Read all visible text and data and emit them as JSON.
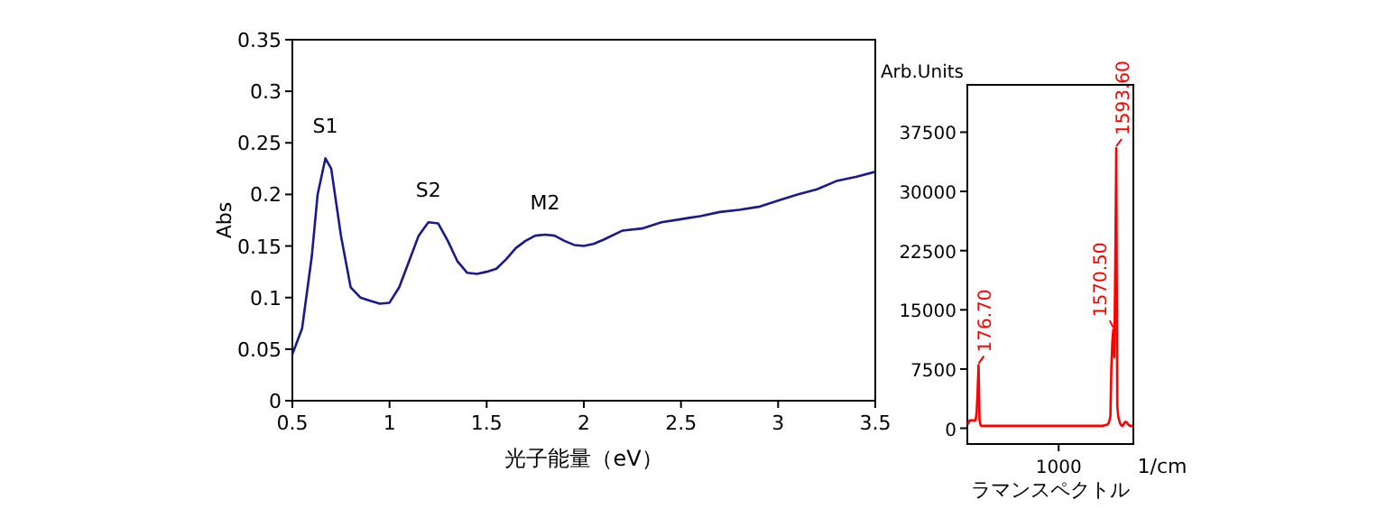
{
  "chart_data": [
    {
      "type": "line",
      "xlabel": "光子能量（eV）",
      "ylabel": "Abs",
      "x": [
        0.5,
        0.55,
        0.6,
        0.63,
        0.67,
        0.7,
        0.75,
        0.8,
        0.85,
        0.9,
        0.95,
        1.0,
        1.05,
        1.1,
        1.15,
        1.2,
        1.25,
        1.3,
        1.35,
        1.4,
        1.45,
        1.5,
        1.55,
        1.6,
        1.65,
        1.7,
        1.75,
        1.8,
        1.85,
        1.9,
        1.95,
        2.0,
        2.05,
        2.1,
        2.2,
        2.3,
        2.4,
        2.5,
        2.6,
        2.7,
        2.8,
        2.9,
        3.0,
        3.1,
        3.2,
        3.3,
        3.4,
        3.5
      ],
      "series": [
        {
          "color": "#1a1a8c",
          "values": [
            0.045,
            0.07,
            0.14,
            0.2,
            0.235,
            0.225,
            0.16,
            0.11,
            0.1,
            0.097,
            0.094,
            0.095,
            0.11,
            0.135,
            0.16,
            0.173,
            0.172,
            0.155,
            0.135,
            0.124,
            0.123,
            0.125,
            0.128,
            0.137,
            0.148,
            0.155,
            0.16,
            0.161,
            0.16,
            0.155,
            0.151,
            0.15,
            0.152,
            0.156,
            0.165,
            0.167,
            0.173,
            0.176,
            0.179,
            0.183,
            0.185,
            0.188,
            0.194,
            0.2,
            0.205,
            0.213,
            0.217,
            0.222
          ]
        }
      ],
      "xlim": [
        0.5,
        3.5
      ],
      "xticks": [
        0.5,
        1,
        1.5,
        2,
        2.5,
        3,
        3.5
      ],
      "ylim": [
        0,
        0.35
      ],
      "yticks": [
        0,
        0.05,
        0.1,
        0.15,
        0.2,
        0.25,
        0.3,
        0.35
      ],
      "annotations": [
        {
          "text": "S1",
          "x": 0.67,
          "y": 0.235
        },
        {
          "text": "S2",
          "x": 1.2,
          "y": 0.173
        },
        {
          "text": "M2",
          "x": 1.8,
          "y": 0.161
        }
      ]
    },
    {
      "type": "line",
      "xlabel": "ラマンスペクトル",
      "ylabel": "Arb.Units",
      "categories": [
        null,
        null,
        null,
        null,
        null,
        null,
        null,
        null,
        null,
        null,
        null,
        null,
        null,
        null,
        null,
        null,
        null,
        null,
        null,
        null,
        null,
        null,
        null,
        null,
        null,
        null,
        null,
        null,
        null,
        null,
        null,
        null,
        null,
        null,
        null,
        null,
        null,
        null,
        null,
        null,
        null,
        null,
        null,
        null,
        null,
        null,
        null,
        null,
        null,
        null,
        null,
        null,
        null,
        null,
        null,
        null,
        null,
        null,
        null,
        null,
        null,
        null,
        null,
        null,
        null,
        null,
        null,
        null,
        null,
        null,
        null,
        null,
        null,
        null,
        null,
        null,
        null,
        null,
        null,
        null,
        null,
        null,
        null,
        null,
        null,
        null,
        null,
        null,
        null,
        null,
        null,
        null,
        null,
        "1000",
        null,
        null,
        null,
        null,
        null,
        null,
        null,
        null,
        null,
        null,
        null,
        null,
        null,
        null,
        null,
        null,
        null,
        null,
        null,
        null,
        null,
        null,
        null,
        null,
        null,
        null,
        null,
        null,
        null,
        null,
        null,
        null,
        null,
        null,
        null,
        null,
        null,
        null,
        null,
        null,
        null,
        null,
        null,
        null,
        null,
        null,
        null,
        null,
        null,
        null,
        null,
        null,
        null,
        null,
        null,
        null,
        null,
        null,
        null,
        null,
        null,
        null,
        null,
        null,
        null,
        null,
        null,
        null,
        null,
        null,
        null,
        null,
        null,
        null,
        null,
        null
      ],
      "series": [
        {
          "color": "#ff0000",
          "values": [
            500,
            800,
            1000,
            1000,
            1000,
            1000,
            1000,
            1000,
            1000,
            2000,
            4500,
            8000,
            1000,
            400,
            300,
            300,
            300,
            300,
            300,
            300,
            300,
            300,
            300,
            300,
            300,
            300,
            300,
            300,
            300,
            300,
            300,
            300,
            300,
            300,
            300,
            300,
            300,
            300,
            300,
            300,
            300,
            300,
            300,
            300,
            300,
            300,
            300,
            300,
            300,
            300,
            300,
            300,
            300,
            300,
            300,
            300,
            300,
            300,
            300,
            300,
            300,
            300,
            300,
            300,
            300,
            300,
            300,
            300,
            300,
            300,
            300,
            300,
            300,
            300,
            300,
            300,
            300,
            300,
            300,
            300,
            300,
            300,
            300,
            300,
            300,
            300,
            300,
            300,
            300,
            300,
            300,
            300,
            300,
            300,
            300,
            300,
            300,
            300,
            300,
            300,
            300,
            300,
            300,
            300,
            300,
            300,
            300,
            300,
            300,
            300,
            300,
            300,
            300,
            300,
            300,
            300,
            300,
            300,
            300,
            300,
            300,
            300,
            300,
            300,
            300,
            300,
            300,
            300,
            300,
            300,
            300,
            300,
            300,
            300,
            300,
            300,
            300,
            300,
            300,
            300,
            400,
            400,
            400,
            500,
            600,
            1000,
            1500,
            7800,
            11000,
            12500,
            9000,
            21000,
            35500,
            3000,
            1500,
            1000,
            600,
            400,
            300,
            400,
            600,
            800,
            800,
            700,
            500,
            400,
            300,
            300,
            300,
            300
          ]
        }
      ],
      "ylim": [
        -2000,
        43500
      ],
      "yticks": [
        0,
        7500,
        15000,
        22500,
        30000,
        37500
      ],
      "annotations": [
        "1/cm",
        "176.70",
        "1570.50",
        "1593.60"
      ]
    }
  ]
}
